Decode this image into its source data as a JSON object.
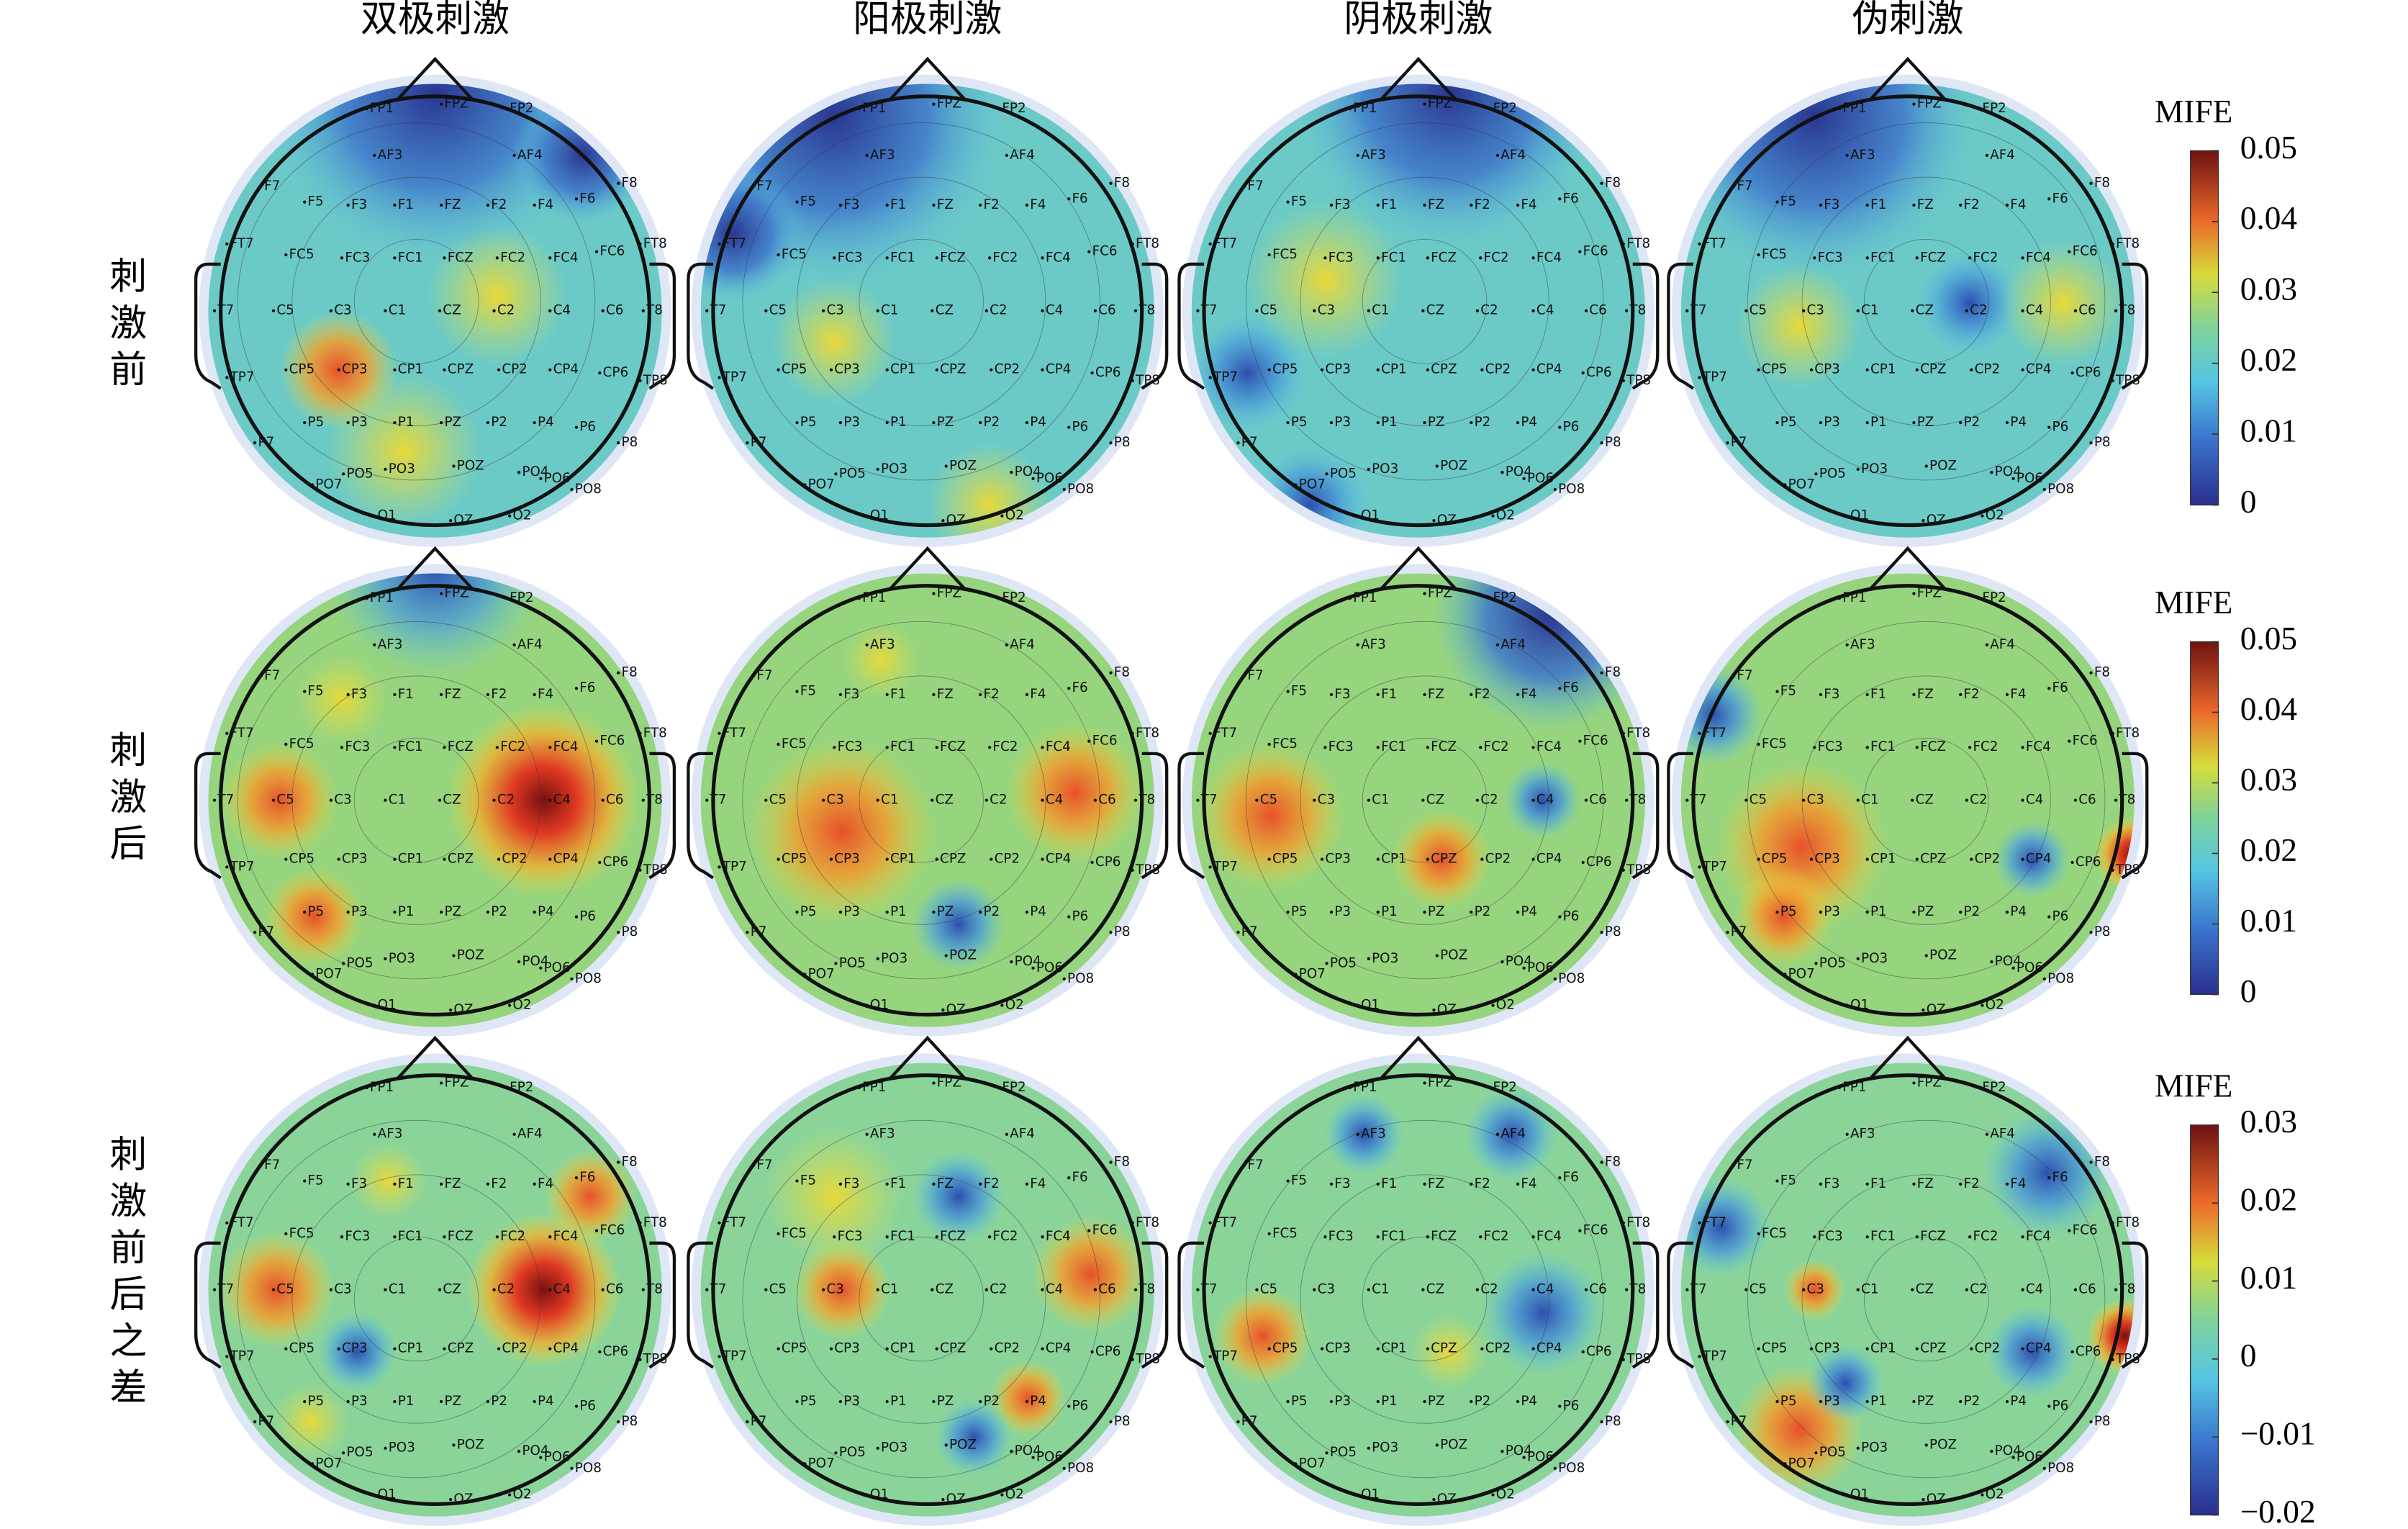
{
  "column_titles": [
    "双极刺激",
    "阳极刺激",
    "阴极刺激",
    "伪刺激"
  ],
  "row_labels": [
    "刺激前",
    "刺激后",
    "刺激前后之差"
  ],
  "electrodes": [
    "FP1",
    "FPZ",
    "FP2",
    "AF3",
    "AF4",
    "F7",
    "F5",
    "F3",
    "F1",
    "FZ",
    "F2",
    "F4",
    "F6",
    "F8",
    "FT7",
    "FC5",
    "FC3",
    "FC1",
    "FCZ",
    "FC2",
    "FC4",
    "FC6",
    "FT8",
    "T7",
    "C5",
    "C3",
    "C1",
    "CZ",
    "C2",
    "C4",
    "C6",
    "T8",
    "TP7",
    "CP5",
    "CP3",
    "CP1",
    "CPZ",
    "CP2",
    "CP4",
    "CP6",
    "TP8",
    "P7",
    "P5",
    "P3",
    "P1",
    "PZ",
    "P2",
    "P4",
    "P6",
    "P8",
    "PO7",
    "PO5",
    "PO3",
    "POZ",
    "PO4",
    "PO6",
    "PO8",
    "O1",
    "OZ",
    "O2"
  ],
  "colorbars": [
    {
      "label": "MIFE",
      "lim": [
        0,
        0.05
      ],
      "ticks": [
        0,
        0.01,
        0.02,
        0.03,
        0.04,
        0.05
      ]
    },
    {
      "label": "MIFE",
      "lim": [
        0,
        0.05
      ],
      "ticks": [
        0,
        0.01,
        0.02,
        0.03,
        0.04,
        0.05
      ]
    },
    {
      "label": "MIFE",
      "lim": [
        -0.02,
        0.03
      ],
      "ticks": [
        {
          "value": -0.02,
          "label": "−0.02"
        },
        {
          "value": -0.01,
          "label": "−0.01"
        },
        0,
        0.01,
        0.02,
        0.03
      ]
    }
  ]
}
